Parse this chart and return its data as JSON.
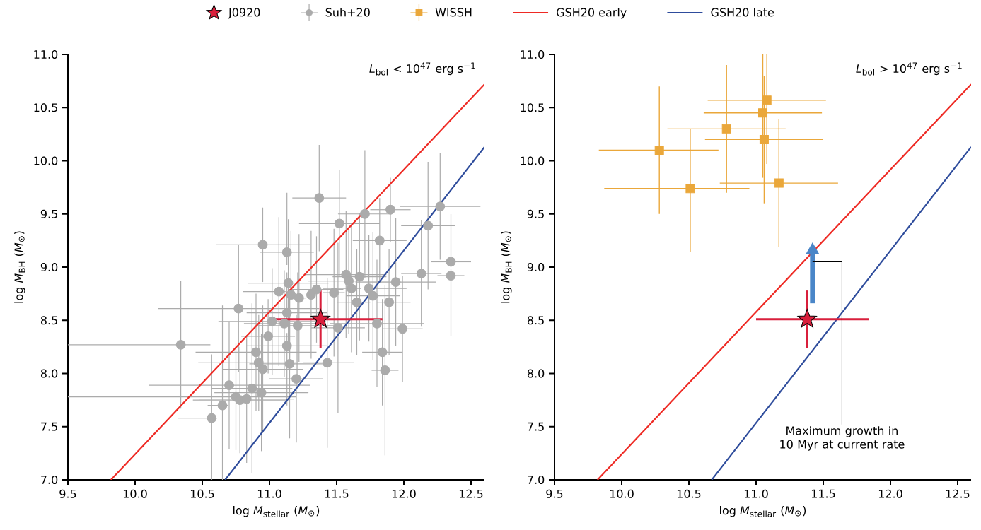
{
  "chart_data": [
    {
      "type": "scatter",
      "xlabel": "log *M*$_{stellar}$ (*M*$_{⊙}$)",
      "ylabel": "log *M*$_{BH}$ (*M*$_{⊙}$)",
      "xlim": [
        9.5,
        12.6
      ],
      "ylim": [
        7.0,
        11.0
      ],
      "xticks": [
        9.5,
        {
          "value": 10,
          "label": "10.0"
        },
        10.5,
        {
          "value": 11,
          "label": "11.0"
        },
        11.5,
        {
          "value": 12,
          "label": "12.0"
        },
        12.5
      ],
      "yticks": [
        {
          "value": 7,
          "label": "7.0"
        },
        7.5,
        {
          "value": 8,
          "label": "8.0"
        },
        8.5,
        {
          "value": 9,
          "label": "9.0"
        },
        9.5,
        {
          "value": 10,
          "label": "10.0"
        },
        10.5,
        {
          "value": 11,
          "label": "11.0"
        }
      ],
      "legend": "top",
      "annotations": [
        "*L*$_{bol}$ < 10$^{47}$ erg s$^{−1}$"
      ],
      "series": [
        {
          "name": "J0920",
          "marker": "star",
          "color": "#d91f3c",
          "x": [
            11.38
          ],
          "values": [
            8.51
          ],
          "xerrors": [
            [
              11.0,
              11.84
            ]
          ],
          "errors": [
            [
              8.24,
              8.78
            ]
          ]
        },
        {
          "name": "Suh+20",
          "marker": "circle",
          "color": "#ababab",
          "x": [
            10.34,
            10.77,
            10.95,
            10.99,
            10.9,
            10.92,
            10.95,
            10.7,
            10.87,
            10.94,
            10.75,
            10.78,
            10.83,
            10.65,
            10.57,
            11.02,
            11.11,
            11.21,
            11.51,
            11.8,
            11.99,
            11.13,
            11.84,
            11.15,
            11.43,
            11.86,
            11.2,
            11.13,
            11.14,
            11.07,
            11.16,
            11.22,
            11.31,
            11.35,
            11.48,
            11.57,
            11.61,
            11.59,
            11.67,
            11.74,
            11.77,
            11.65,
            11.89,
            11.94,
            12.13,
            12.35,
            12.35,
            11.82,
            12.18,
            11.52,
            11.71,
            11.9,
            12.27,
            11.13,
            11.37
          ],
          "values": [
            8.27,
            8.61,
            9.21,
            8.35,
            8.2,
            8.1,
            8.04,
            7.89,
            7.86,
            7.82,
            7.78,
            7.75,
            7.76,
            7.7,
            7.58,
            8.49,
            8.47,
            8.45,
            8.43,
            8.47,
            8.42,
            8.26,
            8.2,
            8.09,
            8.1,
            8.03,
            7.95,
            8.57,
            8.85,
            8.77,
            8.74,
            8.71,
            8.74,
            8.79,
            8.76,
            8.93,
            8.8,
            8.87,
            8.91,
            8.8,
            8.73,
            8.67,
            8.67,
            8.86,
            8.94,
            8.92,
            9.05,
            9.25,
            9.39,
            9.41,
            9.5,
            9.54,
            9.57,
            9.14,
            9.65
          ],
          "xerrors": [
            [
              9.5,
              10.56
            ],
            0.6,
            0.35,
            0.2,
            0.45,
            [
              10.47,
              11.2
            ],
            0.3,
            0.6,
            0.3,
            0.35,
            [
              9.5,
              11.2
            ],
            0.35,
            0.35,
            [
              10.54,
              10.69
            ],
            [
              10.32,
              10.61
            ],
            0.4,
            0.3,
            0.3,
            0.2,
            0.35,
            0.15,
            0.3,
            0.15,
            0.3,
            [
              11.25,
              11.63
            ],
            0.1,
            0.2,
            0.3,
            0.3,
            [
              10.8,
              11.12
            ],
            0.03,
            0.05,
            0.03,
            0.2,
            [
              11.4,
              11.56
            ],
            0.3,
            [
              11.4,
              11.68
            ],
            0.3,
            0.2,
            [
              11.71,
              12.02
            ],
            0.2,
            [
              11.5,
              11.75
            ],
            [
              11.8,
              12.05
            ],
            0.3,
            0.15,
            0.1,
            0.15,
            0.2,
            0.2,
            0.3,
            0.2,
            0.15,
            0.3,
            0.2,
            0.2
          ],
          "errors": [
            [
              7.67,
              8.87
            ],
            [
              8.01,
              9.21
            ],
            0.35,
            0.35,
            0.55,
            0.45,
            0.6,
            0.6,
            0.8,
            0.55,
            0.5,
            0.5,
            0.6,
            [
              7.0,
              8.64
            ],
            [
              7.0,
              8.18
            ],
            0.5,
            0.5,
            0.5,
            0.8,
            0.6,
            0.5,
            [
              7.7,
              8.38
            ],
            0.5,
            0.7,
            0.8,
            0.8,
            0.6,
            [
              8.45,
              8.95
            ],
            0.6,
            0.7,
            0.6,
            0.6,
            0.6,
            0.5,
            0.6,
            0.6,
            0.6,
            0.5,
            0.6,
            0.5,
            0.6,
            0.5,
            0.5,
            0.6,
            0.5,
            [
              8.35,
              8.98
            ],
            [
              9.01,
              9.5
            ],
            0.4,
            0.6,
            0.5,
            0.6,
            0.3,
            0.5,
            [
              9.02,
              9.7
            ],
            0.5
          ]
        },
        {
          "name": "GSH20 early",
          "type": "line",
          "color": "#ee2a24",
          "x": [
            9.82,
            12.6
          ],
          "values": [
            7.0,
            10.72
          ]
        },
        {
          "name": "GSH20 late",
          "type": "line",
          "color": "#2e4c9c",
          "x": [
            10.67,
            12.6
          ],
          "values": [
            7.0,
            10.13
          ]
        }
      ]
    },
    {
      "type": "scatter",
      "xlabel": "log *M*$_{stellar}$ (*M*$_{⊙}$)",
      "ylabel": "log *M*$_{BH}$ (*M*$_{⊙}$)",
      "xlim": [
        9.5,
        12.6
      ],
      "ylim": [
        7.0,
        11.0
      ],
      "xticks": [
        9.5,
        {
          "value": 10,
          "label": "10.0"
        },
        10.5,
        {
          "value": 11,
          "label": "11.0"
        },
        11.5,
        {
          "value": 12,
          "label": "12.0"
        },
        12.5
      ],
      "yticks": [
        {
          "value": 7,
          "label": "7.0"
        },
        7.5,
        {
          "value": 8,
          "label": "8.0"
        },
        8.5,
        {
          "value": 9,
          "label": "9.0"
        },
        9.5,
        {
          "value": 10,
          "label": "10.0"
        },
        10.5,
        {
          "value": 11,
          "label": "11.0"
        }
      ],
      "legend": "top",
      "annotations": [
        "*L*$_{bol}$ > 10$^{47}$ erg s$^{−1}$",
        {
          "text": "Maximum growth in 10 Myr at current rate",
          "x": 11.42,
          "y": 9.05
        }
      ],
      "series": [
        {
          "marker": "star",
          "color": "#d91f3c",
          "x": [
            11.38
          ],
          "values": [
            8.51
          ],
          "xerrors": [
            [
              11.0,
              11.84
            ]
          ],
          "errors": [
            [
              8.24,
              8.78
            ]
          ]
        },
        {
          "name": "WISSH",
          "marker": "square",
          "color": "#eaa73a",
          "x": [
            10.28,
            10.51,
            10.78,
            11.05,
            11.08,
            11.06,
            11.17
          ],
          "values": [
            10.1,
            9.74,
            10.3,
            10.45,
            10.57,
            10.2,
            9.79
          ],
          "xerrors": [
            [
              9.83,
              10.72
            ],
            [
              9.87,
              10.95
            ],
            [
              10.34,
              11.22
            ],
            [
              10.61,
              11.49
            ],
            [
              10.64,
              11.52
            ],
            [
              10.62,
              11.5
            ],
            [
              10.73,
              11.61
            ]
          ],
          "errors": [
            [
              9.5,
              10.7
            ],
            [
              9.14,
              10.3
            ],
            [
              9.7,
              10.9
            ],
            [
              9.84,
              11.0
            ],
            [
              9.97,
              11.0
            ],
            [
              9.6,
              10.8
            ],
            [
              9.19,
              10.39
            ]
          ]
        },
        {
          "type": "line",
          "color": "#ee2a24",
          "x": [
            9.82,
            12.6
          ],
          "values": [
            7.0,
            10.72
          ]
        },
        {
          "type": "line",
          "color": "#2e4c9c",
          "x": [
            10.67,
            12.6
          ],
          "values": [
            7.0,
            10.13
          ]
        },
        {
          "type": "line",
          "color": "#4a86c8",
          "x": [
            11.42,
            11.42
          ],
          "values": [
            8.66,
            9.16
          ]
        }
      ]
    }
  ]
}
